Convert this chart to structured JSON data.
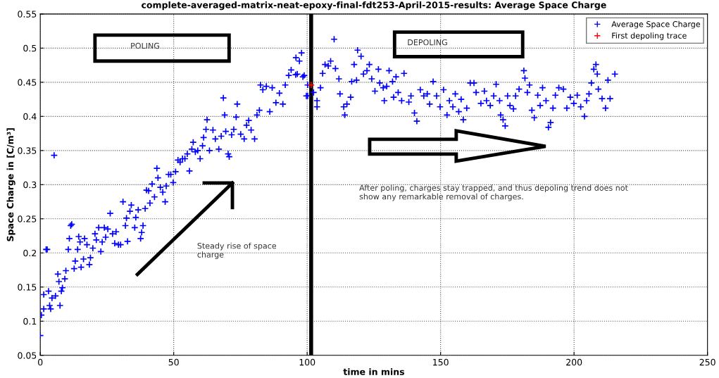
{
  "chart_data": {
    "type": "scatter",
    "title": "complete-averaged-matrix-neat-epoxy-final-fdt253-April-2015-results: Average Space Charge",
    "xlabel": "time in mins",
    "ylabel": "Space Charge in [C/m³]",
    "xlim": [
      0,
      250
    ],
    "xticks": [
      0,
      50,
      100,
      150,
      200,
      250
    ],
    "ylim": [
      0.05,
      0.55
    ],
    "yticks": [
      0.05,
      0.1,
      0.15,
      0.2,
      0.25,
      0.3,
      0.35,
      0.4,
      0.45,
      0.5,
      0.55
    ],
    "grid": true,
    "legend": "top right",
    "marker": "cross",
    "ref_lines": [
      {
        "axis": "x",
        "value": 101.5,
        "color": "#000000"
      }
    ],
    "annotations": [
      "POLING",
      "DEPOLING",
      "Steady rise of space charge",
      "After poling, charges stay trapped, and thus depoling trend does not show any remarkable removal of charges."
    ],
    "series": [
      {
        "name": "Average Space Charge",
        "color": "#0000ff",
        "x": [
          0,
          0.4,
          1.3,
          1.3,
          2.2,
          2.6,
          3.1,
          3.5,
          3.9,
          4.4,
          5.2,
          5.7,
          6.6,
          7,
          7.4,
          7.9,
          8.3,
          9.2,
          9.6,
          10.5,
          10.9,
          11.4,
          11.8,
          12.7,
          13.1,
          14,
          14.4,
          14.9,
          15.3,
          16.2,
          16.6,
          17.5,
          18.4,
          18.8,
          19.7,
          20.5,
          21,
          21.9,
          22.7,
          23.2,
          24,
          24.5,
          25.3,
          26.2,
          27.1,
          27.9,
          28.4,
          29.3,
          30.1,
          31,
          31.9,
          32.3,
          32.7,
          33.6,
          34.1,
          35.4,
          35.8,
          36.7,
          37.6,
          38,
          38.5,
          39.3,
          39.8,
          40.6,
          41.1,
          41.9,
          42.8,
          43.7,
          44.1,
          45,
          45.9,
          46.8,
          47.2,
          48.1,
          48.9,
          49.8,
          50.7,
          51.6,
          52.4,
          53.3,
          54.2,
          55.1,
          55.9,
          56.8,
          57.3,
          58.1,
          59,
          59.9,
          60.8,
          61.2,
          62.1,
          62.5,
          63.4,
          64.7,
          65.6,
          66.9,
          67.8,
          68.6,
          69.1,
          69.5,
          70.4,
          70.8,
          71.7,
          72.5,
          73.4,
          73.8,
          75.1,
          76.4,
          77.3,
          78.1,
          79,
          80.3,
          81.2,
          82.1,
          82.5,
          83.4,
          84.7,
          86,
          86.9,
          88.3,
          89.6,
          90.9,
          91.8,
          93.1,
          94,
          95.7,
          98.4,
          99.7,
          95.8,
          97.1,
          97.9,
          96.3,
          98.9,
          100.2,
          100.2,
          102.4,
          103.7,
          103.7,
          105,
          105.8,
          106.7,
          107.9,
          108.8,
          110.1,
          110.6,
          111.9,
          112.3,
          113.7,
          114.1,
          114.9,
          116.3,
          116.7,
          117.6,
          118.9,
          120.2,
          118.5,
          121.1,
          122.4,
          123.3,
          124.2,
          125.4,
          126.7,
          127.2,
          128.5,
          128.9,
          129.8,
          130.7,
          132,
          132.4,
          133.3,
          134.1,
          135.4,
          136.3,
          138.1,
          138.9,
          140.2,
          141.1,
          142.4,
          143.7,
          145,
          145.9,
          147.2,
          148.5,
          149.8,
          151.1,
          152.4,
          153.3,
          154.6,
          155.5,
          156.8,
          157.7,
          158.5,
          159.8,
          161.1,
          162.5,
          163.3,
          165.1,
          166.4,
          167.2,
          168.6,
          169.9,
          170.8,
          172.1,
          172.5,
          173.4,
          174.2,
          175.1,
          176,
          177.3,
          178.1,
          179.4,
          181.2,
          181.6,
          182.5,
          183.3,
          184.2,
          185.1,
          186.4,
          187.3,
          188.2,
          189.5,
          190.4,
          191.2,
          192.1,
          193,
          194.3,
          196,
          197.3,
          198.6,
          199.9,
          201.2,
          202.5,
          203.9,
          204.7,
          205.6,
          206.5,
          207.4,
          208.2,
          208.7,
          209.1,
          210.5,
          211.8,
          212.7,
          213.5,
          215.3
        ],
        "values": [
          0.079,
          0.109,
          0.118,
          0.139,
          0.205,
          0.205,
          0.144,
          0.123,
          0.118,
          0.134,
          0.343,
          0.137,
          0.169,
          0.158,
          0.123,
          0.144,
          0.149,
          0.162,
          0.174,
          0.205,
          0.221,
          0.24,
          0.242,
          0.177,
          0.188,
          0.205,
          0.224,
          0.216,
          0.179,
          0.191,
          0.221,
          0.212,
          0.183,
          0.193,
          0.207,
          0.228,
          0.219,
          0.237,
          0.202,
          0.216,
          0.237,
          0.223,
          0.235,
          0.258,
          0.228,
          0.214,
          0.231,
          0.212,
          0.212,
          0.275,
          0.24,
          0.251,
          0.217,
          0.261,
          0.27,
          0.237,
          0.252,
          0.263,
          0.221,
          0.23,
          0.24,
          0.265,
          0.292,
          0.291,
          0.273,
          0.301,
          0.282,
          0.324,
          0.31,
          0.296,
          0.289,
          0.275,
          0.298,
          0.315,
          0.315,
          0.303,
          0.319,
          0.336,
          0.333,
          0.338,
          0.338,
          0.345,
          0.32,
          0.352,
          0.362,
          0.348,
          0.35,
          0.338,
          0.357,
          0.369,
          0.381,
          0.395,
          0.35,
          0.38,
          0.367,
          0.352,
          0.371,
          0.427,
          0.402,
          0.378,
          0.345,
          0.341,
          0.373,
          0.381,
          0.399,
          0.418,
          0.374,
          0.367,
          0.387,
          0.394,
          0.38,
          0.367,
          0.402,
          0.409,
          0.446,
          0.439,
          0.444,
          0.407,
          0.442,
          0.42,
          0.434,
          0.418,
          0.446,
          0.46,
          0.468,
          0.461,
          0.458,
          0.43,
          0.486,
          0.481,
          0.493,
          0.462,
          0.46,
          0.446,
          0.43,
          0.435,
          0.423,
          0.414,
          0.442,
          0.463,
          0.476,
          0.474,
          0.481,
          0.513,
          0.47,
          0.455,
          0.433,
          0.414,
          0.402,
          0.418,
          0.428,
          0.451,
          0.476,
          0.497,
          0.488,
          0.453,
          0.462,
          0.467,
          0.476,
          0.455,
          0.437,
          0.469,
          0.449,
          0.442,
          0.423,
          0.444,
          0.467,
          0.451,
          0.428,
          0.458,
          0.435,
          0.423,
          0.463,
          0.421,
          0.43,
          0.405,
          0.393,
          0.439,
          0.43,
          0.433,
          0.418,
          0.451,
          0.43,
          0.414,
          0.439,
          0.402,
          0.423,
          0.414,
          0.433,
          0.407,
          0.425,
          0.395,
          0.412,
          0.449,
          0.449,
          0.435,
          0.419,
          0.437,
          0.423,
          0.416,
          0.43,
          0.447,
          0.423,
          0.402,
          0.395,
          0.386,
          0.43,
          0.416,
          0.411,
          0.43,
          0.44,
          0.467,
          0.456,
          0.435,
          0.446,
          0.409,
          0.398,
          0.431,
          0.416,
          0.442,
          0.423,
          0.384,
          0.391,
          0.412,
          0.431,
          0.442,
          0.44,
          0.412,
          0.428,
          0.419,
          0.431,
          0.414,
          0.4,
          0.423,
          0.433,
          0.449,
          0.469,
          0.476,
          0.462,
          0.44,
          0.426,
          0.412,
          0.453,
          0.426,
          0.462
        ]
      },
      {
        "name": "First depoling trace",
        "color": "#ff0000",
        "x": [
          101.5
        ],
        "values": [
          0.446
        ]
      }
    ]
  }
}
